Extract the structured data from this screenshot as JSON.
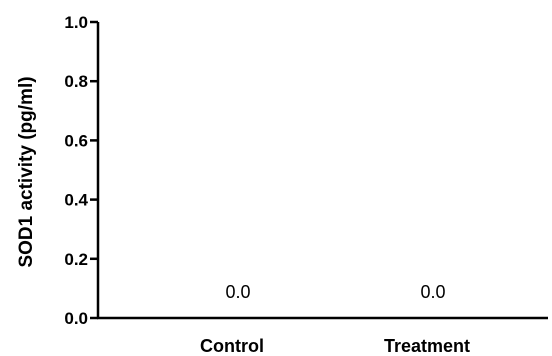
{
  "chart_data": {
    "type": "bar",
    "categories": [
      "Control",
      "Treatment"
    ],
    "values": [
      0.0,
      0.0
    ],
    "data_labels": [
      "0.0",
      "0.0"
    ],
    "title": "",
    "xlabel": "",
    "ylabel": "SOD1 activity (pg/ml)",
    "ylim": [
      0,
      1.0
    ],
    "yticks": [
      "0.0",
      "0.2",
      "0.4",
      "0.6",
      "0.8",
      "1.0"
    ],
    "grid": false,
    "legend": "none"
  }
}
